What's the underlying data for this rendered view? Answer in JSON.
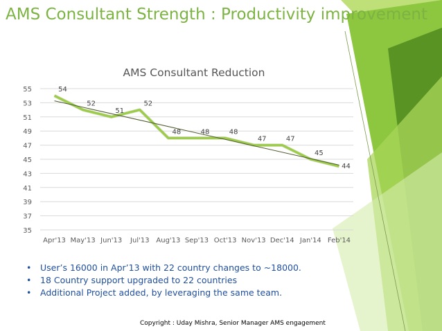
{
  "slide": {
    "title": "AMS Consultant Strength : Productivity improvement",
    "bullets": [
      "User’s 16000 in Apr’13 with 22 country changes to ~18000.",
      "18 Country support upgraded to 22 countries",
      "Additional Project added, by leveraging the same team."
    ],
    "copyright": "Copyright : Uday Mishra, Senior Manager AMS engagement"
  },
  "colors": {
    "title": "#7cb342",
    "series": "#9ccc4a",
    "trendline": "#4e5a2e",
    "bullet_text": "#1f4e9e",
    "decor_green": "#8dc63f",
    "decor_dark": "#4f8a1e"
  },
  "chart_data": {
    "type": "line",
    "title": "AMS Consultant Reduction",
    "xlabel": "",
    "ylabel": "",
    "categories": [
      "Apr'13",
      "May'13",
      "Jun'13",
      "Jul'13",
      "Aug'13",
      "Sep'13",
      "Oct'13",
      "Nov'13",
      "Dec'14",
      "Jan'14",
      "Feb'14"
    ],
    "series": [
      {
        "values": [
          54,
          52,
          51,
          52,
          48,
          48,
          48,
          47,
          47,
          45,
          44
        ]
      }
    ],
    "trendline": "linear",
    "ylim": [
      35,
      55
    ],
    "yticks": [
      35,
      37,
      39,
      41,
      43,
      45,
      47,
      49,
      51,
      53,
      55
    ],
    "grid": true,
    "legend": "none",
    "data_labels": true
  }
}
